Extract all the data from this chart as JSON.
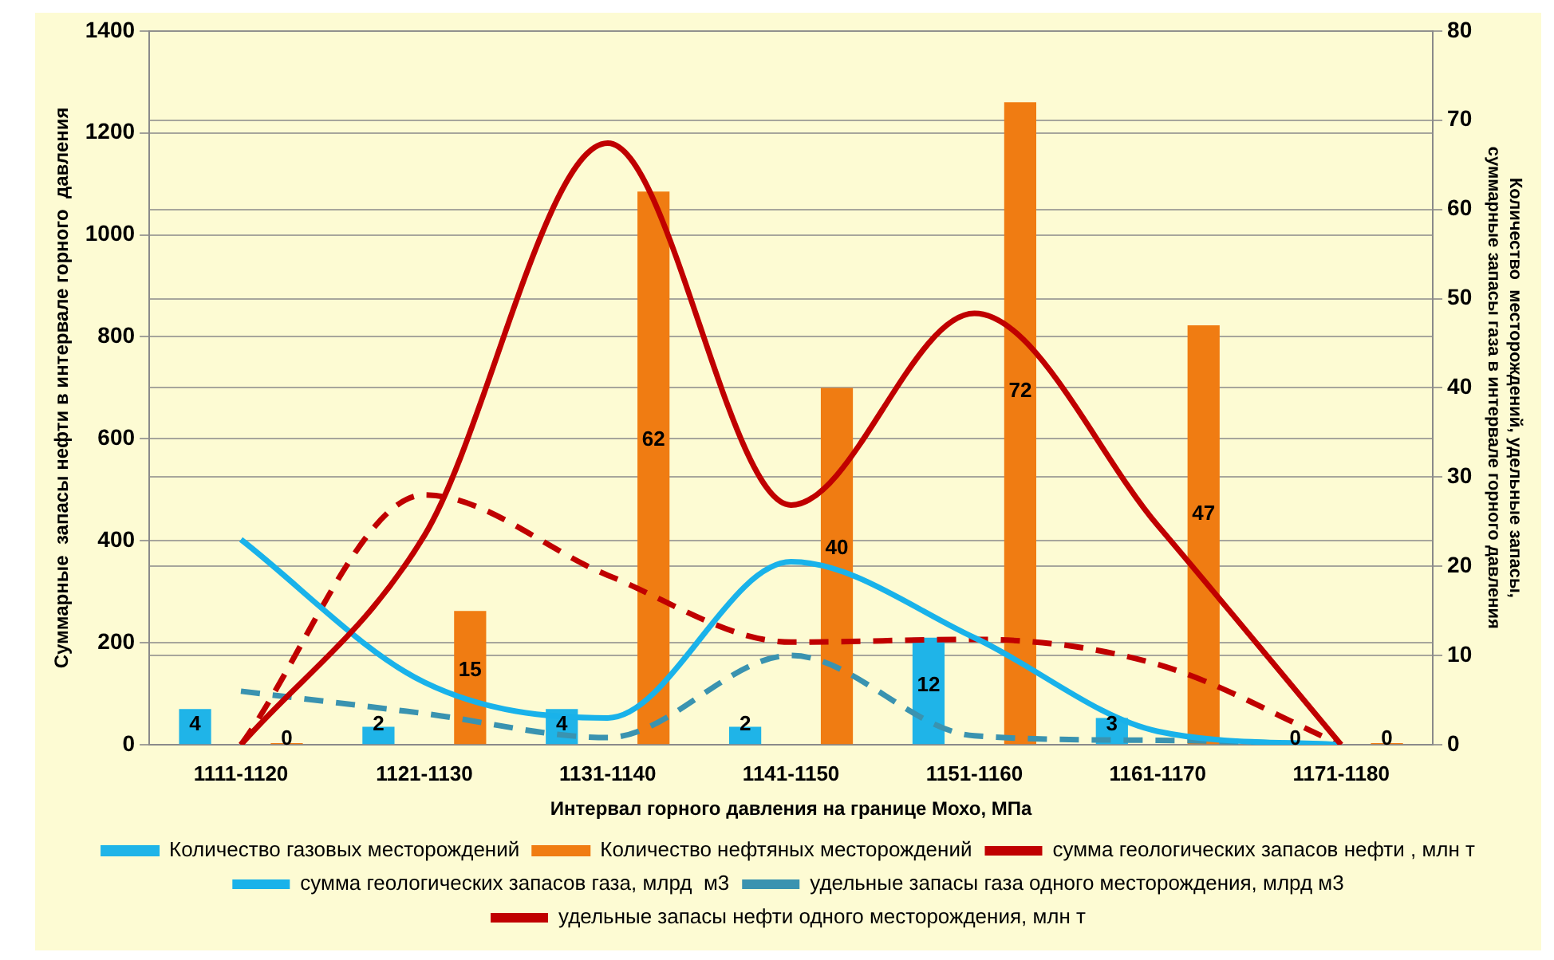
{
  "chart_data": {
    "type": "bar",
    "xlabel": "Интервал горного давления на границе Мохо, МПа",
    "ylabel": "Суммарные  запасы нефти в интервале горного  давления",
    "y2label": "Количество  месторождений, удельные запасы, суммарные запасы газа в интервале горного давления",
    "categories": [
      "1111-1120",
      "1121-1130",
      "1131-1140",
      "1141-1150",
      "1151-1160",
      "1161-1170",
      "1171-1180"
    ],
    "series": [
      {
        "name": "Количество газовых месторождений",
        "type": "bar",
        "axis": "y2",
        "color": "#1fb4e8",
        "values": [
          4,
          2,
          4,
          2,
          12,
          3,
          0
        ],
        "value_labels": [
          "4",
          "2",
          "4",
          "2",
          "12",
          "3",
          "0"
        ]
      },
      {
        "name": "Количество нефтяных месторождений",
        "type": "bar",
        "axis": "y2",
        "color": "#f07c12",
        "values": [
          0,
          15,
          62,
          40,
          72,
          47,
          0
        ],
        "value_labels": [
          "0",
          "15",
          "62",
          "40",
          "72",
          "47",
          "0"
        ]
      },
      {
        "name": "сумма геологических запасов нефти , млн т",
        "type": "line",
        "color": "#c00000",
        "line_style": "solid",
        "values": [
          0,
          410,
          1180,
          470,
          846,
          430,
          0
        ]
      },
      {
        "name": "сумма геологических запасов газа, млрд  м3",
        "type": "line",
        "axis": "y2",
        "color": "#19b2ea",
        "line_style": "solid",
        "values": [
          23,
          7,
          3,
          20.5,
          12,
          1.5,
          0
        ]
      },
      {
        "name": "удельные запасы газа одного месторождения, млрд м3",
        "type": "line",
        "axis": "y2",
        "color": "#3a93b0",
        "line_style": "dashed",
        "values": [
          6,
          3.5,
          0.8,
          10,
          1,
          0.5,
          0
        ]
      },
      {
        "name": "удельные запасы нефти одного месторождения, млн т",
        "type": "line",
        "axis": "y2",
        "color": "#c00000",
        "line_style": "dashed",
        "values": [
          0,
          28,
          19,
          11.5,
          11.8,
          9,
          0
        ]
      }
    ],
    "ylim": [
      0,
      1400
    ],
    "yticks": [
      0,
      200,
      400,
      600,
      800,
      1000,
      1200,
      1400
    ],
    "y2lim": [
      0,
      80
    ],
    "y2ticks": [
      0,
      10,
      20,
      30,
      40,
      50,
      60,
      70,
      80
    ],
    "grid": "y",
    "legend": "bottom",
    "marker": "none"
  }
}
